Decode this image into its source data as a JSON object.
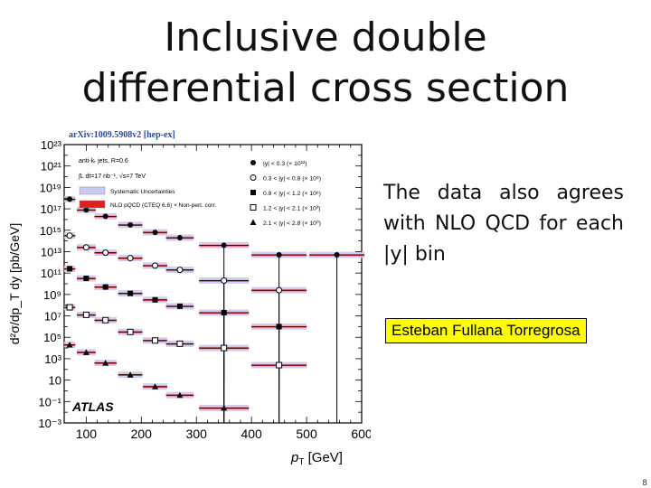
{
  "slide": {
    "title_line1": "Inclusive double",
    "title_line2": "differential cross section",
    "note": "The data also agrees with NLO QCD for each |y| bin",
    "author": "Esteban Fullana Torregrosa",
    "page_number": "8"
  },
  "chart_data": {
    "type": "scatter",
    "source": "arXiv:1009.5908v2 [hep-ex]",
    "watermark": "ATLAS",
    "xlabel": "p_T [GeV]",
    "ylabel": "d²σ/dp_T dy [pb/GeV]",
    "xlim": [
      60,
      600
    ],
    "ylim_log10": [
      -3,
      23
    ],
    "x_ticks": [
      100,
      200,
      300,
      400,
      500,
      600
    ],
    "y_ticks": [
      "10⁻³",
      "10⁻¹",
      "10",
      "10³",
      "10⁵",
      "10⁷",
      "10⁹",
      "10¹¹",
      "10¹³",
      "10¹⁵",
      "10¹⁷",
      "10¹⁹",
      "10²¹",
      "10²³"
    ],
    "info_lines": [
      "anti-kₜ jets, R=0.6",
      "∫L dt=17 nb⁻¹, √s=7 TeV"
    ],
    "band_legend": [
      {
        "label": "Systematic Uncertainties",
        "color": "#c9c9f2"
      },
      {
        "label": "NLO pQCD (CTEQ 6.6) × Non-pert. corr.",
        "color": "#e02020"
      }
    ],
    "colors": {
      "systematic_band": "#c9c9f2",
      "nlo_line": "#dd2222",
      "nlo_band": "#f3b3b3",
      "data": "#000000"
    },
    "grid": false,
    "legend_position": "top-right",
    "series": [
      {
        "name": "|y| < 0.3 (× 10¹²)",
        "marker": "filled-circle",
        "x": [
          70,
          100,
          135,
          180,
          225,
          270,
          350,
          450,
          555
        ],
        "y": [
          17.9,
          16.9,
          16.3,
          15.5,
          14.8,
          14.3,
          13.6,
          12.7,
          12.7
        ]
      },
      {
        "name": "0.3 < |y| < 0.8 (× 10⁹)",
        "marker": "open-circle",
        "x": [
          70,
          100,
          135,
          180,
          225,
          270,
          350,
          450
        ],
        "y": [
          14.5,
          13.4,
          12.9,
          12.4,
          11.7,
          11.3,
          10.3,
          9.4
        ]
      },
      {
        "name": "0.8 < |y| < 1.2 (× 10⁶)",
        "marker": "filled-square",
        "x": [
          70,
          100,
          135,
          180,
          225,
          270,
          350,
          450
        ],
        "y": [
          11.4,
          10.5,
          9.7,
          9.1,
          8.5,
          7.9,
          7.3,
          6.0
        ]
      },
      {
        "name": "1.2 < |y| < 2.1 (× 10³)",
        "marker": "open-square",
        "x": [
          70,
          100,
          135,
          180,
          225,
          270,
          350,
          450
        ],
        "y": [
          7.8,
          7.1,
          6.6,
          5.5,
          4.7,
          4.4,
          4.0,
          2.4
        ]
      },
      {
        "name": "2.1 < |y| < 2.8 (× 10⁰)",
        "marker": "filled-triangle",
        "x": [
          70,
          100,
          135,
          180,
          225,
          270,
          350
        ],
        "y": [
          4.3,
          3.6,
          2.6,
          1.5,
          0.4,
          -0.4,
          -1.6
        ]
      }
    ]
  }
}
